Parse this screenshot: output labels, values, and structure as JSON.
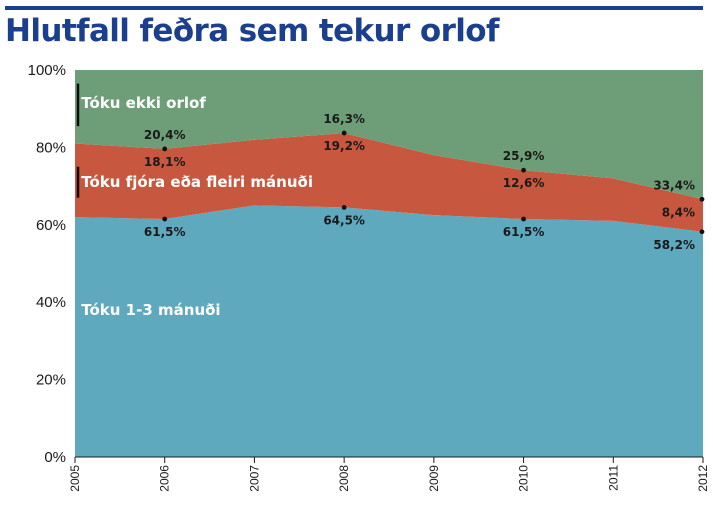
{
  "title": "Hlutfall feðra sem tekur orlof",
  "chart_data": {
    "type": "area",
    "stacked": true,
    "x": [
      2005,
      2006,
      2007,
      2008,
      2009,
      2010,
      2011,
      2012
    ],
    "x_tick_labels": [
      "2005",
      "2006",
      "2007",
      "2008",
      "2009",
      "2010",
      "2011",
      "2012"
    ],
    "y_tick_labels": [
      "0%",
      "20%",
      "40%",
      "60%",
      "80%",
      "100%"
    ],
    "ylim": [
      0,
      100
    ],
    "y_ticks": [
      0,
      20,
      40,
      60,
      80,
      100
    ],
    "series": [
      {
        "name": "Tóku 1-3 mánuði",
        "color": "#5fa9bf",
        "values": [
          62.0,
          61.5,
          65.0,
          64.5,
          62.5,
          61.5,
          61.0,
          58.2
        ]
      },
      {
        "name": "Tóku fjóra eða fleiri mánuði",
        "color": "#c8573f",
        "values": [
          19.0,
          18.1,
          17.0,
          19.2,
          15.5,
          12.6,
          11.0,
          8.4
        ]
      },
      {
        "name": "Tóku ekki orlof",
        "color": "#6e9e77",
        "values": [
          19.0,
          20.4,
          18.0,
          16.3,
          22.0,
          25.9,
          28.0,
          33.4
        ]
      }
    ],
    "data_labels": [
      {
        "x": 2006,
        "series": 2,
        "text": "20,4%"
      },
      {
        "x": 2006,
        "series": 1,
        "text": "18,1%"
      },
      {
        "x": 2006,
        "series": 0,
        "text": "61,5%"
      },
      {
        "x": 2008,
        "series": 2,
        "text": "16,3%"
      },
      {
        "x": 2008,
        "series": 1,
        "text": "19,2%"
      },
      {
        "x": 2008,
        "series": 0,
        "text": "64,5%"
      },
      {
        "x": 2010,
        "series": 2,
        "text": "25,9%"
      },
      {
        "x": 2010,
        "series": 1,
        "text": "12,6%"
      },
      {
        "x": 2010,
        "series": 0,
        "text": "61,5%"
      },
      {
        "x": 2012,
        "series": 2,
        "text": "33,4%"
      },
      {
        "x": 2012,
        "series": 1,
        "text": "8,4%"
      },
      {
        "x": 2012,
        "series": 0,
        "text": "58,2%"
      }
    ]
  }
}
